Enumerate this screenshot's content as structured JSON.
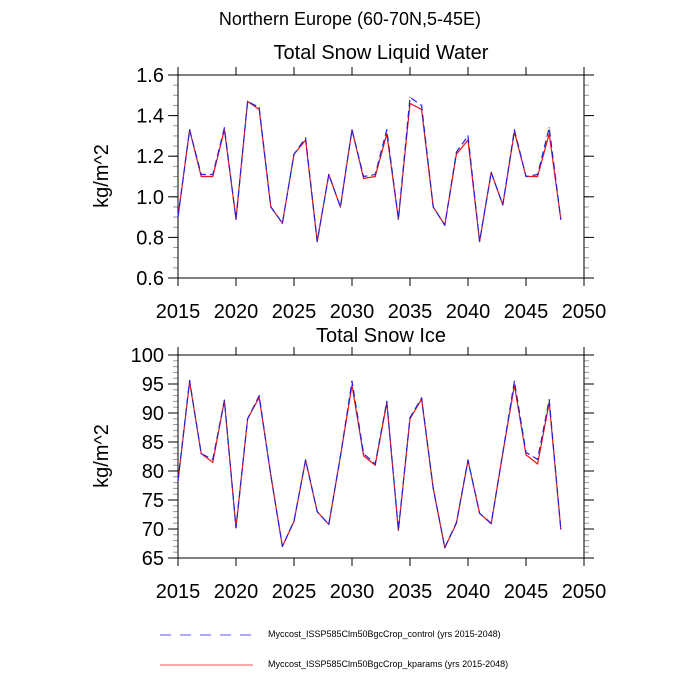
{
  "figure": {
    "suptitle": "Northern Europe (60-70N,5-45E)"
  },
  "colors": {
    "control": "#2222dd",
    "kparams": "#ee1111",
    "axis": "#000000",
    "minor_tick": "#999999"
  },
  "chart_data": [
    {
      "type": "line",
      "title": "Total Snow Liquid Water",
      "xlabel": "",
      "ylabel": "kg/m^2",
      "xlim": [
        2015,
        2050
      ],
      "ylim": [
        0.6,
        1.6
      ],
      "xticks": [
        2015,
        2020,
        2025,
        2030,
        2035,
        2040,
        2045,
        2050
      ],
      "xtick_labels": [
        "2015",
        "2020",
        "2025",
        "2030",
        "2035",
        "2040",
        "2045",
        "2050"
      ],
      "yticks": [
        0.6,
        0.8,
        1.0,
        1.2,
        1.4,
        1.6
      ],
      "ytick_labels": [
        "0.6",
        "0.8",
        "1.0",
        "1.2",
        "1.4",
        "1.6"
      ],
      "yminor_step": 0.05,
      "grid": false,
      "x": [
        2015,
        2016,
        2017,
        2018,
        2019,
        2020,
        2021,
        2022,
        2023,
        2024,
        2025,
        2026,
        2027,
        2028,
        2029,
        2030,
        2031,
        2032,
        2033,
        2034,
        2035,
        2036,
        2037,
        2038,
        2039,
        2040,
        2041,
        2042,
        2043,
        2044,
        2045,
        2046,
        2047,
        2048
      ],
      "series": [
        {
          "name": "Myccost_ISSP585Clm50BgcCrop_control (yrs 2015-2048)",
          "style": "dashed",
          "values": [
            0.9,
            1.33,
            1.11,
            1.11,
            1.34,
            0.89,
            1.47,
            1.44,
            0.95,
            0.87,
            1.21,
            1.29,
            0.78,
            1.11,
            0.95,
            1.33,
            1.1,
            1.11,
            1.33,
            0.89,
            1.49,
            1.45,
            0.95,
            0.86,
            1.22,
            1.3,
            0.78,
            1.12,
            0.96,
            1.33,
            1.1,
            1.11,
            1.34,
            0.89
          ]
        },
        {
          "name": "Myccost_ISSP585Clm50BgcCrop_kparams (yrs 2015-2048)",
          "style": "solid",
          "values": [
            0.9,
            1.33,
            1.1,
            1.1,
            1.33,
            0.89,
            1.47,
            1.43,
            0.95,
            0.87,
            1.21,
            1.28,
            0.78,
            1.11,
            0.95,
            1.33,
            1.09,
            1.1,
            1.31,
            0.89,
            1.46,
            1.43,
            0.95,
            0.86,
            1.21,
            1.28,
            0.78,
            1.12,
            0.96,
            1.32,
            1.1,
            1.1,
            1.31,
            0.89
          ]
        }
      ]
    },
    {
      "type": "line",
      "title": "Total Snow Ice",
      "xlabel": "",
      "ylabel": "kg/m^2",
      "xlim": [
        2015,
        2050
      ],
      "ylim": [
        65,
        100
      ],
      "xticks": [
        2015,
        2020,
        2025,
        2030,
        2035,
        2040,
        2045,
        2050
      ],
      "xtick_labels": [
        "2015",
        "2020",
        "2025",
        "2030",
        "2035",
        "2040",
        "2045",
        "2050"
      ],
      "yticks": [
        65,
        70,
        75,
        80,
        85,
        90,
        95,
        100
      ],
      "ytick_labels": [
        "65",
        "70",
        "75",
        "80",
        "85",
        "90",
        "95",
        "100"
      ],
      "yminor_step": 1,
      "grid": false,
      "x": [
        2015,
        2016,
        2017,
        2018,
        2019,
        2020,
        2021,
        2022,
        2023,
        2024,
        2025,
        2026,
        2027,
        2028,
        2029,
        2030,
        2031,
        2032,
        2033,
        2034,
        2035,
        2036,
        2037,
        2038,
        2039,
        2040,
        2041,
        2042,
        2043,
        2044,
        2045,
        2046,
        2047,
        2048
      ],
      "series": [
        {
          "name": "Myccost_ISSP585Clm50BgcCrop_control (yrs 2015-2048)",
          "style": "dashed",
          "values": [
            78.3,
            95.6,
            83.0,
            82.0,
            92.2,
            70.2,
            89.0,
            93.0,
            79.3,
            67.0,
            71.4,
            81.9,
            73.0,
            70.8,
            82.5,
            95.5,
            83.0,
            81.2,
            92.0,
            69.8,
            89.2,
            92.6,
            77.1,
            66.8,
            71.1,
            81.9,
            72.7,
            71.0,
            83.1,
            95.5,
            83.2,
            82.0,
            92.3,
            70.0
          ]
        },
        {
          "name": "Myccost_ISSP585Clm50BgcCrop_kparams (yrs 2015-2048)",
          "style": "solid",
          "values": [
            78.2,
            95.4,
            83.0,
            81.5,
            92.1,
            70.2,
            89.0,
            92.7,
            79.3,
            67.0,
            71.3,
            81.9,
            73.0,
            70.8,
            82.5,
            94.8,
            82.6,
            81.0,
            91.8,
            69.8,
            89.0,
            92.4,
            77.0,
            66.8,
            71.0,
            81.8,
            72.7,
            70.9,
            83.1,
            94.8,
            82.8,
            81.2,
            91.8,
            70.0
          ]
        }
      ]
    }
  ],
  "legend": {
    "placement": "bottom",
    "items": [
      {
        "label": "Myccost_ISSP585Clm50BgcCrop_control (yrs 2015-2048)",
        "style": "dashed"
      },
      {
        "label": "Myccost_ISSP585Clm50BgcCrop_kparams (yrs 2015-2048)",
        "style": "solid"
      }
    ]
  }
}
